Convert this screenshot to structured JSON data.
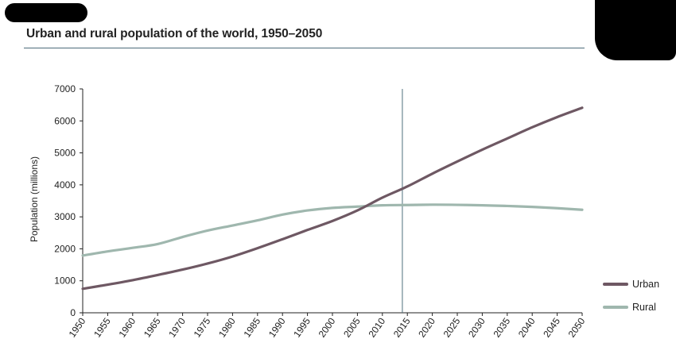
{
  "header": {
    "title": "Urban and rural population of the world, 1950–2050"
  },
  "chart_data": {
    "type": "line",
    "title": "Urban and rural population of the world, 1950–2050",
    "xlabel": "",
    "ylabel": "Population (millions)",
    "x": [
      1950,
      1955,
      1960,
      1965,
      1970,
      1975,
      1980,
      1985,
      1990,
      1995,
      2000,
      2005,
      2010,
      2015,
      2020,
      2025,
      2030,
      2035,
      2040,
      2045,
      2050
    ],
    "xlim": [
      1950,
      2050
    ],
    "ylim": [
      0,
      7000
    ],
    "yticks": [
      0,
      1000,
      2000,
      3000,
      4000,
      5000,
      6000,
      7000
    ],
    "grid": false,
    "legend_position": "right",
    "reference_line_x": 2014,
    "series": [
      {
        "name": "Urban",
        "color": "#6e5863",
        "values": [
          750,
          880,
          1020,
          1180,
          1350,
          1540,
          1760,
          2020,
          2300,
          2590,
          2870,
          3200,
          3600,
          3950,
          4350,
          4730,
          5100,
          5450,
          5800,
          6120,
          6410
        ]
      },
      {
        "name": "Rural",
        "color": "#9fb7ae",
        "values": [
          1790,
          1920,
          2030,
          2150,
          2370,
          2570,
          2730,
          2890,
          3070,
          3200,
          3280,
          3320,
          3360,
          3370,
          3380,
          3375,
          3360,
          3340,
          3310,
          3270,
          3220
        ]
      }
    ]
  }
}
